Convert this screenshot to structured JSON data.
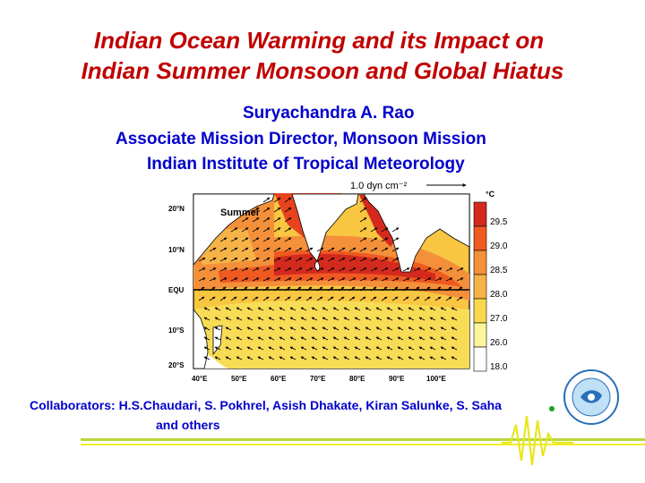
{
  "slide": {
    "title_line1": "Indian Ocean Warming and its Impact on",
    "title_line2": "Indian Summer Monsoon and Global Hiatus",
    "author_name": "Suryachandra A. Rao",
    "author_role": "Associate Mission Director, Monsoon Mission",
    "author_institute": "Indian Institute of Tropical Meteorology",
    "collaborators_line1": "Collaborators: H.S.Chaudari, S. Pokhrel, Asish Dhakate, Kiran Salunke, S. Saha",
    "collaborators_line2": "and others"
  },
  "figure": {
    "season_label": "Summer",
    "vector_scale_label": "1.0 dyn cm⁻²",
    "lat_labels": [
      "20°N",
      "10°N",
      "EQU",
      "10°S",
      "20°S"
    ],
    "lon_labels": [
      "40°E",
      "50°E",
      "60°E",
      "70°E",
      "80°E",
      "90°E",
      "100°E"
    ],
    "colorbar_unit": "°C",
    "colorbar_levels": [
      "29.5",
      "29.0",
      "28.5",
      "28.0",
      "27.0",
      "26.0",
      "18.0"
    ],
    "colorbar_colors": [
      "#d42a1e",
      "#ee5a22",
      "#f4903a",
      "#f6b448",
      "#fad84e",
      "#fcf59c",
      "#ffffff"
    ]
  },
  "colors": {
    "title": "#c00000",
    "text_blue": "#0000cc",
    "rule_green": "#b7d63a",
    "rule_yellow": "#f2ef2a"
  }
}
